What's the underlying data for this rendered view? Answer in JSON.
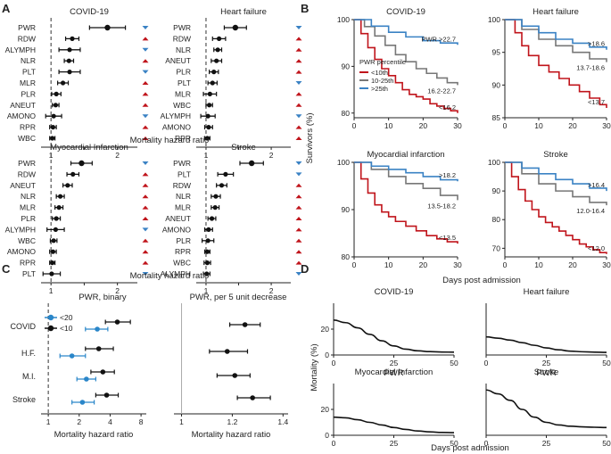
{
  "figure": {
    "panel_letters": [
      "A",
      "B",
      "C",
      "D"
    ],
    "colors": {
      "low": "#c0141b",
      "mid": "#777777",
      "high": "#3a82c4",
      "point": "#111111",
      "arrow_up": "#c0141b",
      "arrow_down": "#3a82c4",
      "binary20": "#2a86c9"
    }
  },
  "chart_data": [
    {
      "panel": "A",
      "type": "forest",
      "title": "COVID-19",
      "xlabel": "Mortality hazard ratio",
      "xlim": [
        0.85,
        2.3
      ],
      "ticks": [
        1,
        1.5,
        2
      ],
      "tick_labels": [
        "1",
        "",
        "2"
      ],
      "labels": [
        "PWR",
        "RDW",
        "ALYMPH",
        "NLR",
        "PLT",
        "MLR",
        "PLR",
        "ANEUT",
        "AMONO",
        "RPR",
        "WBC"
      ],
      "est": [
        1.85,
        1.32,
        1.28,
        1.27,
        1.28,
        1.18,
        1.08,
        1.07,
        1.04,
        1.03,
        1.02
      ],
      "lo": [
        1.58,
        1.22,
        1.12,
        1.2,
        1.12,
        1.1,
        1.01,
        1.02,
        0.92,
        0.98,
        0.98
      ],
      "hi": [
        2.12,
        1.42,
        1.44,
        1.34,
        1.44,
        1.26,
        1.15,
        1.12,
        1.16,
        1.08,
        1.06
      ],
      "dir": [
        "down",
        "up",
        "down",
        "up",
        "down",
        "up",
        "up",
        "up",
        "down",
        "up",
        "up"
      ]
    },
    {
      "panel": "A",
      "type": "forest",
      "title": "Heart failure",
      "xlabel": "Mortality hazard ratio",
      "xlim": [
        0.85,
        2.3
      ],
      "ticks": [
        1,
        1.5,
        2
      ],
      "tick_labels": [
        "1",
        "",
        "2"
      ],
      "labels": [
        "PWR",
        "RDW",
        "NLR",
        "ANEUT",
        "PLR",
        "PLT",
        "MLR",
        "WBC",
        "ALYMPH",
        "AMONO",
        "RPR"
      ],
      "est": [
        1.45,
        1.2,
        1.18,
        1.16,
        1.12,
        1.1,
        1.06,
        1.05,
        1.03,
        1.04,
        1.02
      ],
      "lo": [
        1.28,
        1.1,
        1.12,
        1.08,
        1.05,
        1.03,
        0.96,
        1.0,
        0.92,
        0.98,
        0.98
      ],
      "hi": [
        1.62,
        1.3,
        1.24,
        1.24,
        1.19,
        1.17,
        1.16,
        1.1,
        1.14,
        1.1,
        1.06
      ],
      "dir": [
        "down",
        "up",
        "up",
        "up",
        "up",
        "down",
        "up",
        "up",
        "down",
        "up",
        "up"
      ]
    },
    {
      "panel": "A",
      "type": "forest",
      "title": "Myocardial Infarction",
      "xlabel": "Mortality hazard ratio",
      "xlim": [
        0.85,
        2.3
      ],
      "ticks": [
        1,
        1.5,
        2
      ],
      "tick_labels": [
        "1",
        "",
        "2"
      ],
      "labels": [
        "PWR",
        "RDW",
        "ANEUT",
        "NLR",
        "MLR",
        "PLR",
        "ALYMPH",
        "WBC",
        "AMONO",
        "RPR",
        "PLT"
      ],
      "est": [
        1.46,
        1.33,
        1.25,
        1.14,
        1.12,
        1.08,
        1.07,
        1.04,
        1.03,
        1.02,
        1.01
      ],
      "lo": [
        1.3,
        1.24,
        1.18,
        1.08,
        1.06,
        1.02,
        0.94,
        0.99,
        0.98,
        0.98,
        0.88
      ],
      "hi": [
        1.62,
        1.42,
        1.32,
        1.2,
        1.18,
        1.14,
        1.2,
        1.09,
        1.08,
        1.06,
        1.14
      ],
      "dir": [
        "down",
        "up",
        "up",
        "up",
        "up",
        "up",
        "down",
        "up",
        "up",
        "up",
        "down"
      ]
    },
    {
      "panel": "A",
      "type": "forest",
      "title": "Stroke",
      "xlabel": "Mortality hazard ratio",
      "xlim": [
        0.85,
        2.3
      ],
      "ticks": [
        1,
        1.5,
        2
      ],
      "tick_labels": [
        "1",
        "",
        "2"
      ],
      "labels": [
        "PWR",
        "PLT",
        "RDW",
        "NLR",
        "MLR",
        "ANEUT",
        "AMONO",
        "PLR",
        "RPR",
        "WBC",
        "ALYMPH"
      ],
      "est": [
        1.7,
        1.3,
        1.24,
        1.15,
        1.14,
        1.09,
        1.04,
        1.03,
        1.02,
        1.02,
        1.01
      ],
      "lo": [
        1.52,
        1.18,
        1.16,
        1.08,
        1.08,
        1.03,
        0.98,
        0.94,
        0.98,
        0.97,
        0.96
      ],
      "hi": [
        1.88,
        1.42,
        1.32,
        1.22,
        1.2,
        1.15,
        1.1,
        1.12,
        1.06,
        1.07,
        1.06
      ],
      "dir": [
        "down",
        "down",
        "up",
        "up",
        "up",
        "up",
        "up",
        "up",
        "up",
        "up",
        "down"
      ]
    },
    {
      "panel": "B",
      "type": "line",
      "title": "COVID-19",
      "xlim": [
        0,
        30
      ],
      "ylim": [
        79,
        100
      ],
      "yticks": [
        80,
        90,
        100
      ],
      "xticks": [
        0,
        10,
        20,
        30
      ],
      "ylabel": "Survivors (%)",
      "xlabel": "Days post admission",
      "series": [
        {
          "name": "<10th",
          "label": "<16.2",
          "x": [
            0,
            2,
            4,
            6,
            8,
            10,
            12,
            14,
            16,
            18,
            20,
            22,
            24,
            26,
            28,
            30
          ],
          "y": [
            100,
            97,
            94,
            91.5,
            89.5,
            88,
            86.5,
            85,
            84,
            83.5,
            83,
            82,
            81.5,
            81,
            80.5,
            80
          ]
        },
        {
          "name": "10-25th",
          "label": "16.2-22.7",
          "x": [
            0,
            3,
            6,
            9,
            12,
            15,
            18,
            21,
            24,
            27,
            30
          ],
          "y": [
            100,
            98.5,
            96.5,
            94.5,
            92.5,
            91,
            89.5,
            88.5,
            87.5,
            86.5,
            86
          ]
        },
        {
          "name": ">25th",
          "label": "PWR >22.7",
          "x": [
            0,
            5,
            10,
            15,
            20,
            25,
            30
          ],
          "y": [
            100,
            98.6,
            97.3,
            96.3,
            95.5,
            95,
            94.6
          ]
        }
      ],
      "legend": {
        "title": "PWR percentile",
        "entries": [
          "<10th",
          "10-25th",
          ">25th"
        ],
        "loc": "center-left"
      }
    },
    {
      "panel": "B",
      "type": "line",
      "title": "Heart failure",
      "xlim": [
        0,
        30
      ],
      "ylim": [
        85,
        100
      ],
      "yticks": [
        85,
        90,
        95,
        100
      ],
      "xticks": [
        0,
        10,
        20,
        30
      ],
      "series": [
        {
          "name": "<10th",
          "label": "<13.7",
          "x": [
            0,
            3,
            5,
            7,
            10,
            13,
            16,
            19,
            22,
            25,
            28,
            30
          ],
          "y": [
            100,
            98,
            96,
            94.5,
            93,
            92,
            91,
            90,
            89,
            88,
            87,
            86.5
          ]
        },
        {
          "name": "10-25th",
          "label": "13.7-18.6",
          "x": [
            0,
            5,
            10,
            15,
            20,
            25,
            30
          ],
          "y": [
            100,
            98.5,
            97,
            96,
            95,
            94,
            93.5
          ]
        },
        {
          "name": ">25th",
          "label": ">18.6",
          "x": [
            0,
            5,
            10,
            15,
            20,
            25,
            30
          ],
          "y": [
            100,
            99,
            98,
            97,
            96.4,
            95.8,
            95.4
          ]
        }
      ]
    },
    {
      "panel": "B",
      "type": "line",
      "title": "Myocardial infarction",
      "xlim": [
        0,
        30
      ],
      "ylim": [
        80,
        100
      ],
      "yticks": [
        80,
        90,
        100
      ],
      "xticks": [
        0,
        10,
        20,
        30
      ],
      "series": [
        {
          "name": "<10th",
          "label": "<13.5",
          "x": [
            0,
            2,
            4,
            6,
            8,
            10,
            12,
            15,
            18,
            21,
            24,
            27,
            30
          ],
          "y": [
            100,
            96.5,
            93.5,
            91,
            89.5,
            88.5,
            87.5,
            86.5,
            85.5,
            84.5,
            83.8,
            83.2,
            82.8
          ]
        },
        {
          "name": "10-25th",
          "label": "13.5-18.2",
          "x": [
            0,
            5,
            10,
            15,
            20,
            25,
            30
          ],
          "y": [
            100,
            98.5,
            97,
            95.5,
            94.5,
            93,
            92
          ]
        },
        {
          "name": ">25th",
          "label": ">18.2",
          "x": [
            0,
            5,
            10,
            15,
            20,
            25,
            30
          ],
          "y": [
            100,
            99.2,
            98.5,
            97.8,
            97,
            96.3,
            96
          ]
        }
      ]
    },
    {
      "panel": "B",
      "type": "line",
      "title": "Stroke",
      "xlim": [
        0,
        30
      ],
      "ylim": [
        67,
        100
      ],
      "yticks": [
        70,
        80,
        90,
        100
      ],
      "xticks": [
        0,
        10,
        20,
        30
      ],
      "series": [
        {
          "name": "<10th",
          "label": "<12.0",
          "x": [
            0,
            2,
            4,
            6,
            8,
            10,
            12,
            14,
            16,
            18,
            20,
            22,
            24,
            26,
            28,
            30
          ],
          "y": [
            100,
            95,
            90.5,
            86.5,
            83.5,
            81,
            79,
            77.5,
            76,
            74.5,
            73,
            71.5,
            70.5,
            69.5,
            68.5,
            68
          ]
        },
        {
          "name": "10-25th",
          "label": "12.0-16.4",
          "x": [
            0,
            5,
            10,
            15,
            20,
            25,
            30
          ],
          "y": [
            100,
            96,
            92.5,
            90,
            88,
            86,
            85
          ]
        },
        {
          "name": ">25th",
          "label": ">16.4",
          "x": [
            0,
            5,
            10,
            15,
            20,
            25,
            30
          ],
          "y": [
            100,
            98,
            96,
            94,
            92.5,
            91,
            90
          ]
        }
      ]
    },
    {
      "panel": "C",
      "type": "forest",
      "title": "PWR, binary",
      "scale": "log",
      "xlabel": "Mortality hazard ratio",
      "xticks": [
        1,
        2,
        4,
        8
      ],
      "xlim": [
        0.85,
        9
      ],
      "categories": [
        "COVID",
        "H.F.",
        "M.I.",
        "Stroke"
      ],
      "series": [
        {
          "name": "<20",
          "est": [
            3.0,
            1.7,
            2.35,
            2.15
          ],
          "lo": [
            2.3,
            1.3,
            1.9,
            1.7
          ],
          "hi": [
            3.8,
            2.3,
            2.9,
            2.8
          ]
        },
        {
          "name": "<10",
          "est": [
            4.7,
            3.1,
            3.4,
            3.7
          ],
          "lo": [
            3.6,
            2.3,
            2.6,
            2.9
          ],
          "hi": [
            6.3,
            4.3,
            4.4,
            4.8
          ]
        }
      ],
      "legend": {
        "entries": [
          "<20",
          "<10"
        ],
        "loc": "top-left"
      }
    },
    {
      "panel": "C",
      "type": "forest",
      "title": "PWR, per 5 unit decrease",
      "xlabel": "Mortality hazard ratio",
      "xticks": [
        1,
        1.2,
        1.4
      ],
      "xlim": [
        0.97,
        1.42
      ],
      "categories": [
        "COVID",
        "H.F.",
        "M.I.",
        "Stroke"
      ],
      "est": [
        1.25,
        1.18,
        1.21,
        1.28
      ],
      "lo": [
        1.19,
        1.11,
        1.14,
        1.22
      ],
      "hi": [
        1.31,
        1.26,
        1.27,
        1.35
      ]
    },
    {
      "panel": "D",
      "type": "line",
      "title": "COVID-19",
      "xlim": [
        0,
        50
      ],
      "ylim": [
        0,
        40
      ],
      "xticks": [
        0,
        25,
        50
      ],
      "yticks": [
        0,
        20
      ],
      "xlabel": "PWR",
      "ylabel": "Mortality (%)",
      "series": [
        {
          "name": "mortality",
          "x": [
            0,
            5,
            10,
            15,
            20,
            25,
            30,
            35,
            40,
            45,
            50
          ],
          "y": [
            27,
            25,
            21,
            16,
            11,
            7,
            4.5,
            3.2,
            2.6,
            2.3,
            2.2
          ]
        }
      ]
    },
    {
      "panel": "D",
      "type": "line",
      "title": "Heart failure",
      "xlim": [
        0,
        50
      ],
      "ylim": [
        0,
        40
      ],
      "xticks": [
        0,
        25,
        50
      ],
      "yticks": [],
      "xlabel": "PWR",
      "series": [
        {
          "name": "mortality",
          "x": [
            0,
            5,
            10,
            15,
            20,
            25,
            30,
            35,
            40,
            45,
            50
          ],
          "y": [
            14,
            13,
            11.5,
            9.5,
            7.5,
            5.5,
            4,
            3,
            2.5,
            2.2,
            2
          ]
        }
      ]
    },
    {
      "panel": "D",
      "type": "line",
      "title": "Myocardial Infarction",
      "xlim": [
        0,
        50
      ],
      "ylim": [
        0,
        40
      ],
      "xticks": [
        0,
        25,
        50
      ],
      "yticks": [
        0,
        20
      ],
      "xlabel": "Days post admission",
      "series": [
        {
          "name": "mortality",
          "x": [
            0,
            5,
            10,
            15,
            20,
            25,
            30,
            35,
            40,
            45,
            50
          ],
          "y": [
            14,
            13.5,
            12,
            10,
            8,
            6,
            4.5,
            3.3,
            2.6,
            2.2,
            2
          ]
        }
      ]
    },
    {
      "panel": "D",
      "type": "line",
      "title": "Stroke",
      "xlim": [
        0,
        50
      ],
      "ylim": [
        0,
        40
      ],
      "xticks": [
        0,
        25,
        50
      ],
      "yticks": [],
      "xlabel": "Days post admission",
      "series": [
        {
          "name": "mortality",
          "x": [
            0,
            5,
            10,
            15,
            20,
            25,
            30,
            35,
            40,
            45,
            50
          ],
          "y": [
            35,
            32,
            27,
            20,
            14,
            10,
            8,
            7,
            6.5,
            6.2,
            6
          ]
        }
      ]
    }
  ]
}
